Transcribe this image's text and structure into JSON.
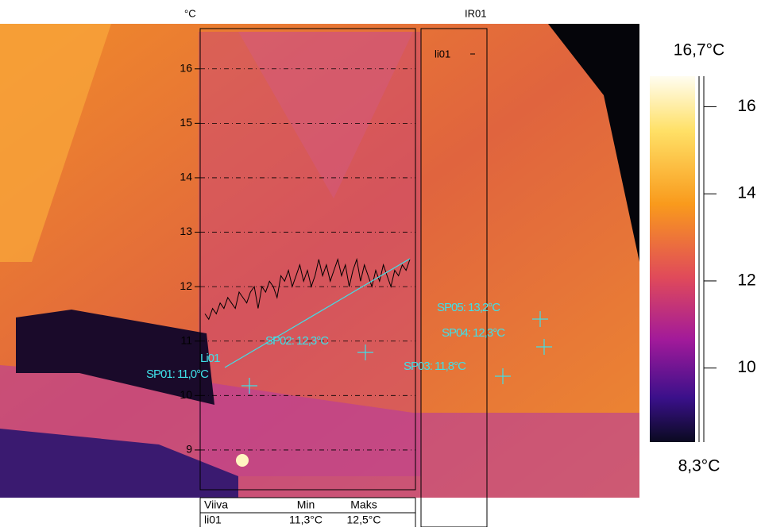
{
  "header": {
    "unit_label": "°C",
    "image_label": "IR01"
  },
  "chart_data": {
    "type": "line",
    "name": "li01",
    "color": "#000000",
    "values": [
      11.5,
      11.4,
      11.6,
      11.5,
      11.7,
      11.6,
      11.8,
      11.7,
      11.6,
      11.9,
      11.8,
      11.7,
      11.9,
      12.0,
      11.6,
      12.0,
      11.9,
      12.1,
      12.0,
      11.8,
      12.2,
      12.1,
      12.3,
      12.0,
      12.2,
      12.4,
      12.1,
      12.3,
      12.0,
      12.2,
      12.5,
      12.2,
      12.4,
      12.1,
      12.3,
      12.5,
      12.2,
      12.4,
      12.0,
      12.3,
      12.5,
      12.1,
      12.4,
      12.2,
      12.0,
      12.3,
      12.1,
      12.4,
      12.2,
      12.0,
      12.3,
      12.2,
      12.4,
      12.3,
      12.5
    ],
    "ylim": [
      8.27,
      16.74
    ],
    "yticks": [
      9,
      10,
      11,
      12,
      13,
      14,
      15,
      16
    ],
    "grid": true
  },
  "colorbar": {
    "ylim": [
      8.3,
      16.7
    ],
    "yticks": [
      10,
      12,
      14,
      16
    ],
    "max_label": "16,7°C",
    "min_label": "8,3°C"
  },
  "overlays": {
    "line_label": "Li01",
    "spots": [
      "SP01: 11,0°C",
      "SP02: 12,3°C",
      "SP03: 11,8°C",
      "SP04: 12,3°C",
      "SP05: 13,2°C"
    ]
  },
  "table": {
    "header": [
      "Viiva",
      "Min",
      "Maks"
    ],
    "rows": [
      [
        "li01",
        "11,3°C",
        "12,5°C"
      ]
    ]
  }
}
